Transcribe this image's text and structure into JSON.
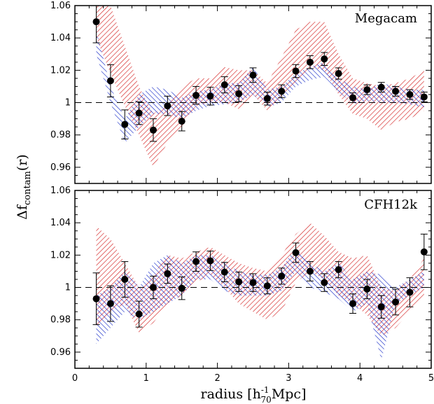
{
  "chart_data": [
    {
      "type": "scatter",
      "title": "Megacam",
      "xlim": [
        0,
        5
      ],
      "ylim": [
        0.95,
        1.06
      ],
      "yticks": [
        "0.96",
        "0.98",
        "1",
        "1.02",
        "1.04",
        "1.06"
      ],
      "reference_line": 1,
      "x": [
        0.3,
        0.5,
        0.7,
        0.9,
        1.1,
        1.3,
        1.5,
        1.7,
        1.9,
        2.1,
        2.3,
        2.5,
        2.7,
        2.9,
        3.1,
        3.3,
        3.5,
        3.7,
        3.9,
        4.1,
        4.3,
        4.5,
        4.7,
        4.9
      ],
      "y": [
        1.05,
        1.0135,
        0.9865,
        0.9935,
        0.983,
        0.998,
        0.9885,
        1.0045,
        1.004,
        1.011,
        1.0055,
        1.017,
        1.0025,
        1.007,
        1.0195,
        1.025,
        1.027,
        1.018,
        1.003,
        1.008,
        1.0095,
        1.007,
        1.005,
        1.0035
      ],
      "yerr": [
        0.013,
        0.01,
        0.009,
        0.007,
        0.007,
        0.006,
        0.006,
        0.0055,
        0.0055,
        0.005,
        0.005,
        0.0045,
        0.004,
        0.004,
        0.004,
        0.004,
        0.004,
        0.0035,
        0.003,
        0.003,
        0.003,
        0.003,
        0.003,
        0.003
      ],
      "band_red": {
        "x": [
          0.3,
          0.5,
          0.7,
          0.9,
          1.1,
          1.3,
          1.5,
          1.7,
          1.9,
          2.1,
          2.3,
          2.5,
          2.7,
          2.9,
          3.1,
          3.3,
          3.5,
          3.7,
          3.9,
          4.1,
          4.3,
          4.5,
          4.7,
          4.9
        ],
        "lower": [
          1.04,
          1.018,
          0.998,
          0.98,
          0.96,
          0.975,
          0.985,
          0.998,
          1.0,
          1.0,
          0.996,
          1.005,
          0.995,
          1.002,
          1.012,
          1.022,
          1.02,
          1.005,
          0.993,
          0.99,
          0.983,
          0.988,
          0.99,
          0.995
        ],
        "upper": [
          1.07,
          1.06,
          1.035,
          1.01,
          0.993,
          1.0,
          1.01,
          1.015,
          1.015,
          1.022,
          1.02,
          1.02,
          1.012,
          1.028,
          1.045,
          1.05,
          1.05,
          1.03,
          1.015,
          1.012,
          1.01,
          1.012,
          1.015,
          1.02
        ]
      },
      "band_blue": {
        "x": [
          0.3,
          0.5,
          0.7,
          0.9,
          1.1,
          1.3,
          1.5,
          1.7,
          1.9,
          2.1,
          2.3,
          2.5,
          2.7,
          2.9,
          3.1,
          3.3,
          3.5,
          3.7,
          3.9,
          4.1,
          4.3,
          4.5,
          4.7,
          4.9
        ],
        "lower": [
          1.03,
          1.0,
          0.975,
          0.985,
          0.993,
          0.993,
          0.99,
          0.995,
          0.998,
          0.999,
          1.0,
          1.005,
          0.997,
          1.0,
          1.01,
          1.014,
          1.016,
          1.007,
          0.999,
          1.001,
          1.0,
          1.0,
          0.999,
          0.997
        ],
        "upper": [
          1.045,
          1.01,
          0.99,
          1.005,
          1.01,
          1.008,
          1.003,
          1.007,
          1.008,
          1.012,
          1.012,
          1.022,
          1.008,
          1.01,
          1.018,
          1.022,
          1.025,
          1.015,
          1.01,
          1.008,
          1.012,
          1.01,
          1.008,
          1.008
        ]
      }
    },
    {
      "type": "scatter",
      "title": "CFH12k",
      "xlim": [
        0,
        5
      ],
      "ylim": [
        0.95,
        1.06
      ],
      "xticks": [
        "0",
        "1",
        "2",
        "3",
        "4",
        "5"
      ],
      "yticks": [
        "0.96",
        "0.98",
        "1",
        "1.02",
        "1.04",
        "1.06"
      ],
      "reference_line": 1,
      "x": [
        0.3,
        0.5,
        0.7,
        0.9,
        1.1,
        1.3,
        1.5,
        1.7,
        1.9,
        2.1,
        2.3,
        2.5,
        2.7,
        2.9,
        3.1,
        3.3,
        3.5,
        3.7,
        3.9,
        4.1,
        4.3,
        4.5,
        4.7,
        4.9
      ],
      "y": [
        0.993,
        0.99,
        1.005,
        0.9835,
        1.0,
        1.0085,
        0.9995,
        1.016,
        1.0165,
        1.0095,
        1.0035,
        1.003,
        1.001,
        1.007,
        1.0215,
        1.01,
        1.003,
        1.011,
        0.99,
        0.999,
        0.988,
        0.991,
        0.997,
        1.022
      ],
      "yerr": [
        0.016,
        0.011,
        0.011,
        0.008,
        0.007,
        0.006,
        0.007,
        0.006,
        0.006,
        0.006,
        0.006,
        0.0055,
        0.005,
        0.005,
        0.006,
        0.006,
        0.0055,
        0.005,
        0.006,
        0.006,
        0.007,
        0.008,
        0.009,
        0.011
      ],
      "band_red": {
        "x": [
          0.3,
          0.5,
          0.7,
          0.9,
          1.1,
          1.3,
          1.5,
          1.7,
          1.9,
          2.1,
          2.3,
          2.5,
          2.7,
          2.9,
          3.1,
          3.3,
          3.5,
          3.7,
          3.9,
          4.1,
          4.3,
          4.5,
          4.7,
          4.9
        ],
        "lower": [
          0.975,
          0.985,
          0.99,
          0.972,
          0.978,
          0.99,
          0.995,
          1.003,
          1.008,
          1.0,
          0.99,
          0.985,
          0.98,
          0.985,
          1.003,
          1.01,
          1.005,
          0.995,
          0.99,
          0.983,
          0.97,
          0.975,
          0.985,
          0.995
        ],
        "upper": [
          1.038,
          1.03,
          1.015,
          1.0,
          1.008,
          1.02,
          1.018,
          1.022,
          1.025,
          1.02,
          1.015,
          1.012,
          1.01,
          1.02,
          1.033,
          1.04,
          1.032,
          1.022,
          1.018,
          1.02,
          1.0,
          0.998,
          1.005,
          1.018
        ]
      },
      "band_blue": {
        "x": [
          0.3,
          0.5,
          0.7,
          0.9,
          1.1,
          1.3,
          1.5,
          1.7,
          1.9,
          2.1,
          2.3,
          2.5,
          2.7,
          2.9,
          3.1,
          3.3,
          3.5,
          3.7,
          3.9,
          4.1,
          4.3,
          4.5,
          4.7,
          4.9
        ],
        "lower": [
          0.965,
          0.975,
          0.985,
          0.98,
          0.985,
          0.99,
          0.995,
          1.005,
          1.005,
          0.998,
          0.995,
          0.995,
          0.995,
          0.998,
          1.01,
          1.0,
          0.997,
          0.993,
          0.985,
          0.99,
          0.955,
          0.99,
          0.995,
          1.0
        ],
        "upper": [
          0.995,
          1.0,
          1.01,
          1.0,
          1.015,
          1.02,
          1.015,
          1.02,
          1.02,
          1.015,
          1.01,
          1.008,
          1.008,
          1.012,
          1.025,
          1.015,
          1.01,
          1.015,
          1.005,
          1.01,
          1.008,
          1.0,
          1.005,
          1.01
        ]
      }
    }
  ],
  "axes": {
    "ylabel_main": "Δf",
    "ylabel_sub": "contam",
    "ylabel_arg": "(r)",
    "xlabel_main": "radius [h",
    "xlabel_sup": "-1",
    "xlabel_sub": "70",
    "xlabel_unit": "Mpc]"
  },
  "colors": {
    "red_band": "#d42020",
    "blue_band": "#1a2fc8",
    "points": "#000000"
  }
}
